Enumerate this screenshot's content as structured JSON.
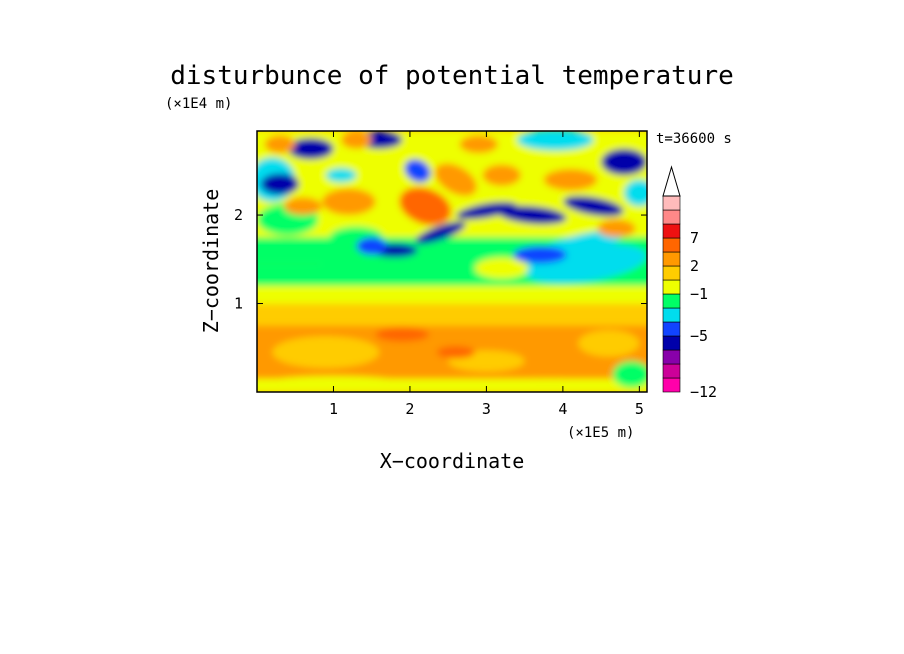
{
  "chart_data": {
    "type": "heatmap",
    "title": "disturbunce of potential temperature",
    "xlabel": "X−coordinate",
    "ylabel": "Z−coordinate",
    "x_unit": "(×1E5 m)",
    "y_unit": "(×1E4 m)",
    "time_label": "t=36600 s",
    "x_ticks": [
      "1",
      "2",
      "3",
      "4",
      "5"
    ],
    "x_tick_values": [
      1,
      2,
      3,
      4,
      5
    ],
    "y_ticks": [
      "1",
      "2"
    ],
    "y_tick_values": [
      1,
      2
    ],
    "xlim": [
      0,
      5.1
    ],
    "ylim": [
      0,
      2.95
    ],
    "colorbar": {
      "labels": [
        "7",
        "2",
        "−1",
        "−5",
        "−12"
      ],
      "colors": [
        "#ff00aa",
        "#cc0099",
        "#8800aa",
        "#0000aa",
        "#1144ff",
        "#00ddee",
        "#00ff66",
        "#eeff00",
        "#ffcc00",
        "#ff9900",
        "#ff6600",
        "#ee1111",
        "#ff8888",
        "#ffbbbb"
      ],
      "extend_top": true
    },
    "field_colors": {
      "strong_negative": "#0000aa",
      "negative": "#1144ff",
      "slight_negative": "#00ddee",
      "near_zero": "#00ff66",
      "slight_positive": "#eeff00",
      "positive": "#ffcc00",
      "more_positive": "#ff9900",
      "high_positive": "#ff6600",
      "very_high": "#ee1111"
    }
  }
}
